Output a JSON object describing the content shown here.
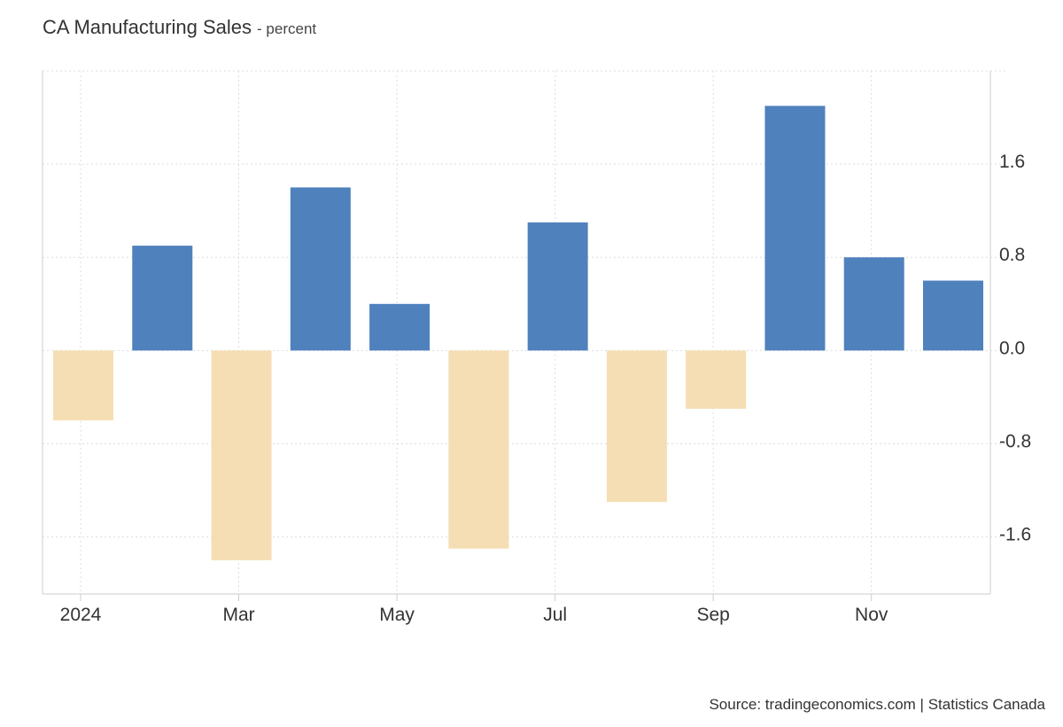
{
  "header": {
    "title": "CA Manufacturing Sales",
    "subtitle": "- percent"
  },
  "footer": {
    "source": "Source: tradingeconomics.com | Statistics Canada"
  },
  "chart_data": {
    "type": "bar",
    "title": "CA Manufacturing Sales",
    "subtitle": "percent",
    "categories": [
      "Jan 2024",
      "Feb 2024",
      "Mar 2024",
      "Apr 2024",
      "May 2024",
      "Jun 2024",
      "Jul 2024",
      "Aug 2024",
      "Sep 2024",
      "Oct 2024",
      "Nov 2024",
      "Dec 2024"
    ],
    "values": [
      -0.6,
      0.9,
      -1.8,
      1.4,
      0.4,
      -1.7,
      1.1,
      -1.3,
      -0.5,
      2.1,
      0.8,
      0.6
    ],
    "x_tick_labels": [
      {
        "label": "2024",
        "category_index": 0
      },
      {
        "label": "Mar",
        "category_index": 2
      },
      {
        "label": "May",
        "category_index": 4
      },
      {
        "label": "Jul",
        "category_index": 6
      },
      {
        "label": "Sep",
        "category_index": 8
      },
      {
        "label": "Nov",
        "category_index": 10
      }
    ],
    "y_ticks": [
      1.6,
      0.8,
      0.0,
      -0.8,
      -1.6
    ],
    "y_tick_labels": [
      "1.6",
      "0.8",
      "0.0",
      "-0.8",
      "-1.6"
    ],
    "ylim": [
      -2.09,
      2.4
    ],
    "y_axis_side": "right",
    "grid": true,
    "legend": "none",
    "colors": {
      "positive": "#4f81bd",
      "negative": "#f5deb3",
      "grid": "#dddddd",
      "axis": "#cccccc"
    }
  }
}
